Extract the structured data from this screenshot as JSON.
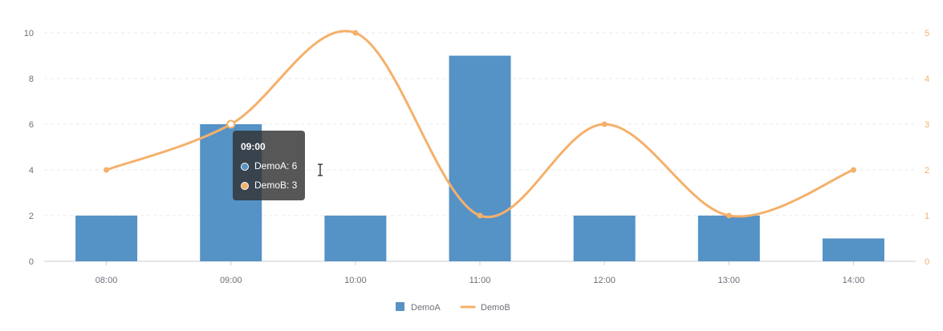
{
  "chart_data": {
    "type": "bar",
    "categories": [
      "08:00",
      "09:00",
      "10:00",
      "11:00",
      "12:00",
      "13:00",
      "14:00"
    ],
    "series": [
      {
        "name": "DemoA",
        "type": "bar",
        "axis": "left",
        "values": [
          2,
          6,
          2,
          9,
          2,
          2,
          1
        ],
        "color": "#5592c6"
      },
      {
        "name": "DemoB",
        "type": "line",
        "smooth": true,
        "axis": "right",
        "values": [
          2,
          3,
          5,
          1,
          3,
          1,
          2
        ],
        "color": "#f5b06a"
      }
    ],
    "y_left": {
      "ylim": [
        0,
        10
      ],
      "ticks": [
        "0",
        "2",
        "4",
        "6",
        "8",
        "10"
      ]
    },
    "y_right": {
      "ylim": [
        0,
        5
      ],
      "ticks": [
        "0",
        "1",
        "2",
        "3",
        "4",
        "5"
      ]
    },
    "grid": true,
    "legend_position": "bottom-center",
    "title": "",
    "xlabel": "",
    "ylabel": ""
  },
  "tooltip": {
    "title": "09:00",
    "rows": [
      {
        "label": "DemoA: 6",
        "color": "#5592c6"
      },
      {
        "label": "DemoB: 3",
        "color": "#f5b06a"
      }
    ]
  }
}
